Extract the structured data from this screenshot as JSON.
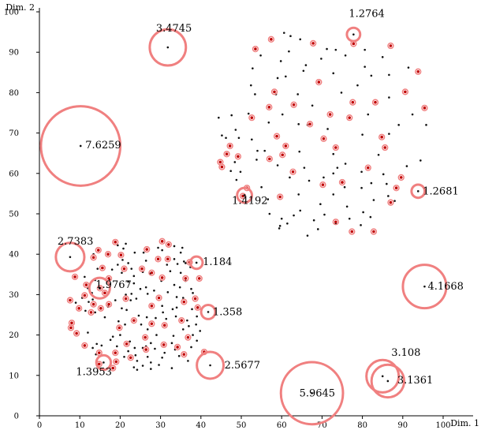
{
  "chart_data": {
    "type": "scatter",
    "xlabel": "Dim. 1",
    "ylabel": "Dim. 2",
    "xlim": [
      0,
      100
    ],
    "ylim": [
      0,
      100
    ],
    "xticks": [
      0,
      10,
      20,
      30,
      40,
      50,
      60,
      70,
      80,
      90,
      100
    ],
    "yticks": [
      0,
      10,
      20,
      30,
      40,
      50,
      60,
      70,
      80,
      90,
      100
    ],
    "colors": {
      "point": "#111111",
      "highlight": "#c00000",
      "halo": "#f08080"
    },
    "outliers": [
      {
        "label": "3.4745",
        "x": 31.8,
        "y": 91.2,
        "score": 3.4745
      },
      {
        "label": "7.6259",
        "x": 10.2,
        "y": 66.8,
        "score": 7.6259
      },
      {
        "label": "1.2764",
        "x": 77.8,
        "y": 94.4,
        "score": 1.2764
      },
      {
        "label": "1.2681",
        "x": 93.8,
        "y": 55.6,
        "score": 1.2681
      },
      {
        "label": "1.4192",
        "x": 50.8,
        "y": 54.6,
        "score": 1.4192
      },
      {
        "label": "2.7383",
        "x": 7.6,
        "y": 39.3,
        "score": 2.7383
      },
      {
        "label": "1.184",
        "x": 38.9,
        "y": 37.9,
        "score": 1.184
      },
      {
        "label": "1.9767",
        "x": 14.9,
        "y": 31.6,
        "score": 1.9767
      },
      {
        "label": "4.1668",
        "x": 95.4,
        "y": 32.0,
        "score": 4.1668
      },
      {
        "label": "1.358",
        "x": 41.8,
        "y": 25.7,
        "score": 1.358
      },
      {
        "label": "2.5677",
        "x": 42.3,
        "y": 12.5,
        "score": 2.5677
      },
      {
        "label": "1.3953",
        "x": 15.9,
        "y": 13.2,
        "score": 1.3953
      },
      {
        "label": "3.108",
        "x": 85.0,
        "y": 9.8,
        "score": 3.108
      },
      {
        "label": "3.1361",
        "x": 86.3,
        "y": 8.6,
        "score": 3.1361
      },
      {
        "label": "5.9645",
        "x": 67.5,
        "y": 5.6,
        "score": 5.9645
      }
    ],
    "red_points": [
      [
        53.5,
        90.8
      ],
      [
        57.4,
        93.2
      ],
      [
        67.8,
        92.2
      ],
      [
        77.8,
        92.1
      ],
      [
        87.0,
        91.6
      ],
      [
        93.8,
        85.2
      ],
      [
        90.6,
        80.2
      ],
      [
        95.4,
        76.2
      ],
      [
        58.2,
        80.2
      ],
      [
        69.2,
        82.6
      ],
      [
        63.0,
        77.0
      ],
      [
        56.9,
        76.4
      ],
      [
        77.6,
        77.6
      ],
      [
        83.2,
        77.6
      ],
      [
        72.0,
        74.6
      ],
      [
        76.8,
        73.8
      ],
      [
        52.6,
        73.8
      ],
      [
        67.0,
        72.2
      ],
      [
        58.8,
        69.2
      ],
      [
        70.4,
        68.6
      ],
      [
        84.8,
        69.0
      ],
      [
        73.4,
        66.4
      ],
      [
        61.0,
        66.8
      ],
      [
        47.2,
        66.8
      ],
      [
        85.6,
        66.4
      ],
      [
        46.4,
        64.8
      ],
      [
        60.2,
        64.6
      ],
      [
        57.0,
        63.6
      ],
      [
        49.2,
        64.2
      ],
      [
        44.8,
        62.8
      ],
      [
        45.2,
        61.6
      ],
      [
        81.4,
        61.4
      ],
      [
        62.8,
        60.4
      ],
      [
        75.0,
        57.8
      ],
      [
        89.6,
        59.0
      ],
      [
        70.2,
        57.2
      ],
      [
        51.4,
        56.4
      ],
      [
        59.6,
        54.2
      ],
      [
        88.4,
        56.4
      ],
      [
        50.4,
        54.4
      ],
      [
        77.4,
        45.6
      ],
      [
        73.4,
        48.0
      ],
      [
        82.8,
        45.6
      ],
      [
        87.0,
        52.8
      ],
      [
        18.8,
        43.0
      ],
      [
        30.4,
        43.2
      ],
      [
        32.0,
        42.4
      ],
      [
        26.6,
        41.2
      ],
      [
        14.6,
        41.0
      ],
      [
        17.0,
        40.0
      ],
      [
        20.2,
        39.8
      ],
      [
        13.4,
        39.2
      ],
      [
        29.4,
        38.8
      ],
      [
        31.8,
        38.8
      ],
      [
        37.2,
        38.0
      ],
      [
        15.6,
        36.6
      ],
      [
        25.4,
        36.4
      ],
      [
        21.0,
        36.4
      ],
      [
        8.8,
        34.4
      ],
      [
        17.2,
        34.0
      ],
      [
        30.4,
        34.2
      ],
      [
        39.6,
        34.0
      ],
      [
        36.2,
        34.0
      ],
      [
        27.8,
        35.4
      ],
      [
        11.6,
        32.4
      ],
      [
        15.0,
        31.6
      ],
      [
        16.2,
        30.4
      ],
      [
        29.6,
        29.2
      ],
      [
        11.2,
        29.8
      ],
      [
        38.6,
        29.0
      ],
      [
        7.6,
        28.6
      ],
      [
        35.8,
        28.2
      ],
      [
        17.2,
        27.6
      ],
      [
        21.4,
        29.0
      ],
      [
        13.4,
        27.6
      ],
      [
        27.8,
        27.2
      ],
      [
        15.2,
        26.6
      ],
      [
        9.8,
        26.6
      ],
      [
        12.8,
        25.6
      ],
      [
        39.2,
        26.8
      ],
      [
        8.0,
        23.0
      ],
      [
        23.4,
        23.6
      ],
      [
        19.8,
        21.8
      ],
      [
        27.8,
        22.8
      ],
      [
        31.0,
        22.4
      ],
      [
        7.8,
        21.8
      ],
      [
        9.2,
        20.4
      ],
      [
        26.2,
        19.4
      ],
      [
        36.8,
        19.4
      ],
      [
        21.6,
        17.8
      ],
      [
        11.2,
        17.4
      ],
      [
        30.8,
        17.6
      ],
      [
        26.4,
        16.4
      ],
      [
        18.8,
        15.6
      ],
      [
        35.8,
        15.2
      ],
      [
        14.8,
        15.6
      ],
      [
        19.0,
        13.4
      ],
      [
        14.8,
        12.8
      ],
      [
        18.2,
        11.8
      ],
      [
        22.6,
        14.4
      ],
      [
        40.8,
        15.8
      ],
      [
        34.2,
        17.0
      ],
      [
        35.2,
        23.6
      ]
    ],
    "black_points": [
      [
        60.6,
        94.8
      ],
      [
        62.2,
        94.0
      ],
      [
        64.6,
        93.2
      ],
      [
        71.2,
        90.8
      ],
      [
        73.4,
        90.6
      ],
      [
        61.8,
        90.2
      ],
      [
        80.6,
        90.6
      ],
      [
        54.8,
        89.2
      ],
      [
        69.8,
        88.4
      ],
      [
        75.8,
        89.2
      ],
      [
        85.0,
        88.8
      ],
      [
        59.8,
        87.8
      ],
      [
        66.0,
        86.8
      ],
      [
        80.6,
        86.4
      ],
      [
        91.4,
        86.2
      ],
      [
        52.8,
        86.0
      ],
      [
        61.0,
        84.0
      ],
      [
        65.4,
        85.4
      ],
      [
        72.8,
        84.8
      ],
      [
        82.2,
        84.2
      ],
      [
        86.6,
        84.4
      ],
      [
        59.0,
        83.6
      ],
      [
        52.4,
        81.8
      ],
      [
        78.8,
        81.8
      ],
      [
        53.4,
        79.6
      ],
      [
        64.0,
        79.6
      ],
      [
        74.8,
        80.0
      ],
      [
        58.6,
        79.6
      ],
      [
        86.6,
        78.8
      ],
      [
        67.6,
        76.8
      ],
      [
        51.8,
        74.8
      ],
      [
        60.2,
        74.6
      ],
      [
        81.4,
        74.6
      ],
      [
        92.4,
        74.6
      ],
      [
        47.6,
        74.4
      ],
      [
        64.2,
        72.2
      ],
      [
        44.4,
        73.8
      ],
      [
        56.8,
        72.6
      ],
      [
        89.0,
        72.0
      ],
      [
        66.4,
        72.0
      ],
      [
        95.8,
        72.0
      ],
      [
        48.6,
        70.8
      ],
      [
        45.2,
        69.4
      ],
      [
        71.4,
        71.0
      ],
      [
        86.6,
        69.8
      ],
      [
        49.4,
        68.8
      ],
      [
        46.2,
        68.8
      ],
      [
        80.0,
        69.6
      ],
      [
        52.6,
        68.4
      ],
      [
        55.8,
        65.6
      ],
      [
        54.0,
        65.6
      ],
      [
        64.4,
        65.4
      ],
      [
        72.8,
        64.8
      ],
      [
        84.0,
        64.6
      ],
      [
        94.4,
        63.2
      ],
      [
        53.8,
        63.4
      ],
      [
        48.4,
        62.8
      ],
      [
        75.8,
        62.4
      ],
      [
        59.0,
        62.0
      ],
      [
        65.6,
        61.4
      ],
      [
        73.8,
        61.4
      ],
      [
        47.4,
        60.6
      ],
      [
        91.0,
        61.8
      ],
      [
        79.8,
        60.4
      ],
      [
        85.2,
        59.8
      ],
      [
        49.8,
        60.4
      ],
      [
        62.0,
        59.0
      ],
      [
        66.8,
        58.2
      ],
      [
        72.8,
        60.0
      ],
      [
        48.8,
        58.4
      ],
      [
        70.4,
        59.0
      ],
      [
        82.2,
        57.6
      ],
      [
        75.6,
        56.6
      ],
      [
        55.0,
        56.6
      ],
      [
        79.8,
        56.4
      ],
      [
        86.0,
        57.4
      ],
      [
        64.2,
        54.8
      ],
      [
        56.6,
        53.6
      ],
      [
        72.8,
        54.8
      ],
      [
        82.8,
        53.4
      ],
      [
        86.4,
        54.4
      ],
      [
        88.0,
        53.2
      ],
      [
        69.6,
        52.4
      ],
      [
        76.2,
        51.8
      ],
      [
        64.6,
        50.8
      ],
      [
        80.2,
        50.4
      ],
      [
        57.0,
        50.0
      ],
      [
        63.0,
        49.6
      ],
      [
        70.6,
        49.8
      ],
      [
        82.0,
        49.2
      ],
      [
        60.0,
        48.8
      ],
      [
        76.8,
        48.8
      ],
      [
        68.0,
        48.4
      ],
      [
        61.4,
        47.6
      ],
      [
        73.4,
        47.6
      ],
      [
        79.6,
        47.2
      ],
      [
        59.6,
        47.0
      ],
      [
        69.0,
        46.2
      ],
      [
        59.4,
        46.4
      ],
      [
        66.4,
        44.6
      ],
      [
        21.4,
        42.6
      ],
      [
        19.4,
        42.2
      ],
      [
        33.4,
        42.0
      ],
      [
        35.4,
        41.6
      ],
      [
        29.4,
        41.6
      ],
      [
        20.8,
        41.4
      ],
      [
        30.4,
        41.0
      ],
      [
        35.0,
        40.4
      ],
      [
        25.8,
        40.4
      ],
      [
        13.4,
        40.0
      ],
      [
        23.6,
        40.4
      ],
      [
        20.6,
        38.6
      ],
      [
        33.4,
        38.8
      ],
      [
        35.8,
        38.2
      ],
      [
        34.2,
        37.6
      ],
      [
        26.4,
        38.4
      ],
      [
        22.0,
        37.8
      ],
      [
        36.2,
        37.8
      ],
      [
        19.4,
        37.4
      ],
      [
        31.6,
        37.4
      ],
      [
        37.4,
        36.8
      ],
      [
        22.8,
        36.4
      ],
      [
        18.0,
        36.2
      ],
      [
        14.4,
        36.4
      ],
      [
        25.6,
        35.6
      ],
      [
        35.0,
        35.4
      ],
      [
        32.4,
        35.8
      ],
      [
        27.4,
        35.2
      ],
      [
        20.4,
        35.4
      ],
      [
        23.4,
        34.6
      ],
      [
        11.2,
        34.4
      ],
      [
        13.8,
        33.6
      ],
      [
        30.2,
        33.4
      ],
      [
        23.4,
        32.8
      ],
      [
        22.0,
        33.2
      ],
      [
        17.4,
        33.6
      ],
      [
        26.4,
        31.8
      ],
      [
        33.4,
        32.4
      ],
      [
        34.8,
        31.8
      ],
      [
        37.6,
        31.4
      ],
      [
        36.2,
        33.4
      ],
      [
        12.0,
        31.6
      ],
      [
        25.0,
        31.4
      ],
      [
        13.0,
        30.4
      ],
      [
        22.8,
        30.2
      ],
      [
        38.0,
        30.4
      ],
      [
        31.8,
        30.6
      ],
      [
        28.4,
        31.0
      ],
      [
        34.0,
        29.4
      ],
      [
        21.4,
        30.0
      ],
      [
        26.8,
        30.2
      ],
      [
        10.6,
        29.2
      ],
      [
        13.2,
        28.8
      ],
      [
        18.8,
        28.6
      ],
      [
        22.6,
        28.6
      ],
      [
        35.6,
        29.2
      ],
      [
        24.0,
        29.0
      ],
      [
        9.0,
        28.0
      ],
      [
        12.2,
        28.2
      ],
      [
        17.0,
        27.0
      ],
      [
        30.4,
        27.2
      ],
      [
        34.0,
        26.8
      ],
      [
        37.8,
        26.4
      ],
      [
        20.4,
        26.6
      ],
      [
        33.0,
        26.4
      ],
      [
        13.8,
        25.6
      ],
      [
        30.6,
        25.6
      ],
      [
        11.4,
        26.0
      ],
      [
        21.6,
        26.2
      ],
      [
        24.6,
        24.8
      ],
      [
        26.6,
        24.4
      ],
      [
        28.8,
        24.2
      ],
      [
        31.4,
        24.0
      ],
      [
        33.8,
        24.6
      ],
      [
        39.0,
        24.6
      ],
      [
        16.2,
        24.4
      ],
      [
        36.6,
        23.6
      ],
      [
        19.6,
        23.4
      ],
      [
        38.8,
        22.6
      ],
      [
        21.2,
        22.6
      ],
      [
        37.0,
        22.2
      ],
      [
        25.2,
        22.6
      ],
      [
        35.6,
        21.4
      ],
      [
        26.8,
        21.4
      ],
      [
        39.8,
        21.0
      ],
      [
        12.0,
        20.6
      ],
      [
        20.0,
        20.0
      ],
      [
        29.0,
        20.0
      ],
      [
        18.2,
        19.6
      ],
      [
        33.2,
        19.8
      ],
      [
        38.0,
        20.0
      ],
      [
        17.6,
        18.8
      ],
      [
        27.6,
        18.0
      ],
      [
        22.4,
        18.4
      ],
      [
        32.8,
        18.0
      ],
      [
        39.0,
        18.6
      ],
      [
        14.2,
        17.8
      ],
      [
        15.4,
        17.4
      ],
      [
        26.4,
        17.2
      ],
      [
        25.6,
        16.8
      ],
      [
        37.6,
        17.0
      ],
      [
        13.2,
        16.8
      ],
      [
        19.2,
        17.2
      ],
      [
        22.0,
        16.0
      ],
      [
        23.6,
        16.8
      ],
      [
        28.6,
        16.6
      ],
      [
        33.6,
        16.4
      ],
      [
        31.0,
        15.6
      ],
      [
        14.0,
        15.2
      ],
      [
        23.8,
        15.0
      ],
      [
        26.8,
        14.6
      ],
      [
        34.6,
        14.8
      ],
      [
        21.0,
        14.6
      ],
      [
        30.4,
        14.4
      ],
      [
        24.2,
        13.6
      ],
      [
        27.6,
        13.2
      ],
      [
        36.8,
        13.6
      ],
      [
        25.6,
        12.4
      ],
      [
        23.4,
        12.0
      ],
      [
        29.6,
        12.6
      ],
      [
        32.8,
        11.8
      ],
      [
        24.2,
        11.4
      ],
      [
        27.6,
        11.6
      ]
    ]
  }
}
